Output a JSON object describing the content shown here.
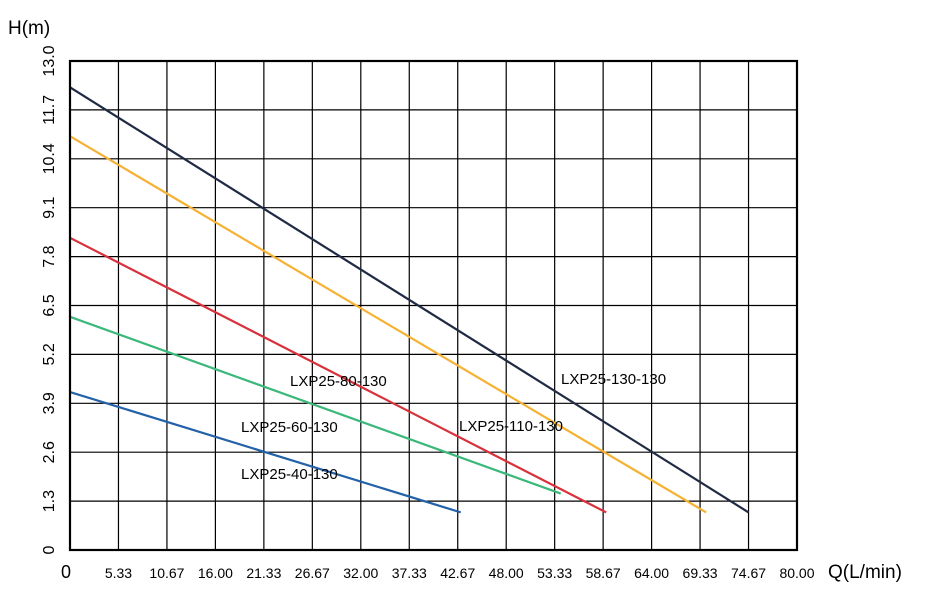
{
  "chart_data": {
    "type": "line",
    "xlabel": "Q(L/min)",
    "ylabel": "H(m)",
    "xlim": [
      0,
      80
    ],
    "ylim": [
      0,
      13
    ],
    "x_ticks": [
      "0",
      "5.33",
      "10.67",
      "16.00",
      "21.33",
      "26.67",
      "32.00",
      "37.33",
      "42.67",
      "48.00",
      "53.33",
      "58.67",
      "64.00",
      "69.33",
      "74.67",
      "80.00"
    ],
    "y_ticks": [
      "0",
      "1.3",
      "2.6",
      "3.9",
      "5.2",
      "6.5",
      "7.8",
      "9.1",
      "10.4",
      "11.7",
      "13.0"
    ],
    "grid": true,
    "series": [
      {
        "name": "LXP25-130-130",
        "color": "#1f2a44",
        "x": [
          0,
          74.67
        ],
        "y": [
          12.3,
          1.0
        ]
      },
      {
        "name": "LXP25-110-130",
        "color": "#f6b132",
        "x": [
          0,
          70.0
        ],
        "y": [
          11.0,
          1.0
        ]
      },
      {
        "name": "LXP25-80-130",
        "color": "#d9313b",
        "x": [
          0,
          59.0
        ],
        "y": [
          8.3,
          1.0
        ]
      },
      {
        "name": "LXP25-60-130",
        "color": "#3bb87a",
        "x": [
          0,
          54.0
        ],
        "y": [
          6.2,
          1.5
        ]
      },
      {
        "name": "LXP25-40-130",
        "color": "#2361a9",
        "x": [
          0,
          43.0
        ],
        "y": [
          4.2,
          1.0
        ]
      }
    ]
  }
}
